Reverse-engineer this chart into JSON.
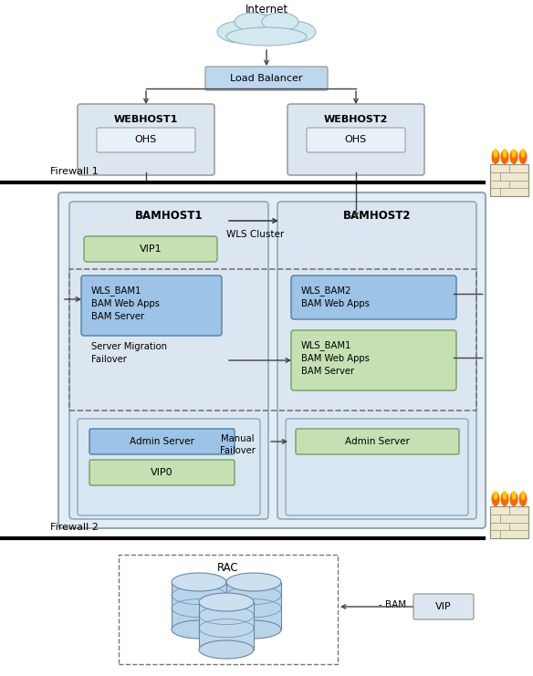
{
  "bg_color": "#ffffff",
  "internet_label": "Internet",
  "load_balancer_label": "Load Balancer",
  "webhost1_label": "WEBHOST1",
  "webhost2_label": "WEBHOST2",
  "ohs_label": "OHS",
  "firewall1_label": "Firewall 1",
  "firewall2_label": "Firewall 2",
  "bamhost1_label": "BAMHOST1",
  "bamhost2_label": "BAMHOST2",
  "wls_cluster_label": "WLS Cluster",
  "vip1_label": "VIP1",
  "wls_bam1_label": "WLS_BAM1\nBAM Web Apps\nBAM Server",
  "wls_bam2_label": "WLS_BAM2\nBAM Web Apps",
  "wls_bam1_right_label": "WLS_BAM1\nBAM Web Apps\nBAM Server",
  "server_migration_label": "Server Migration\nFailover",
  "admin1_label": "Admin Server",
  "vip0_label": "VIP0",
  "admin2_label": "Admin Server",
  "manual_failover_label": "Manual\nFailover",
  "rac_label": "RAC",
  "vip_bottom_label": "VIP",
  "bam_label": "- BAM",
  "light_blue": "#dce6f1",
  "mid_blue": "#bdd7ee",
  "dark_blue": "#9dc3e6",
  "green": "#c6e0b4",
  "very_light_blue": "#e8f0f8",
  "outline_gray": "#a0a0a0",
  "dark_outline": "#606060",
  "arrow_color": "#404040",
  "dashed_color": "#808080",
  "fw_wall_color": "#e8e0c0",
  "fw_flame_orange": "#ff6600",
  "fw_flame_yellow": "#ffcc00"
}
